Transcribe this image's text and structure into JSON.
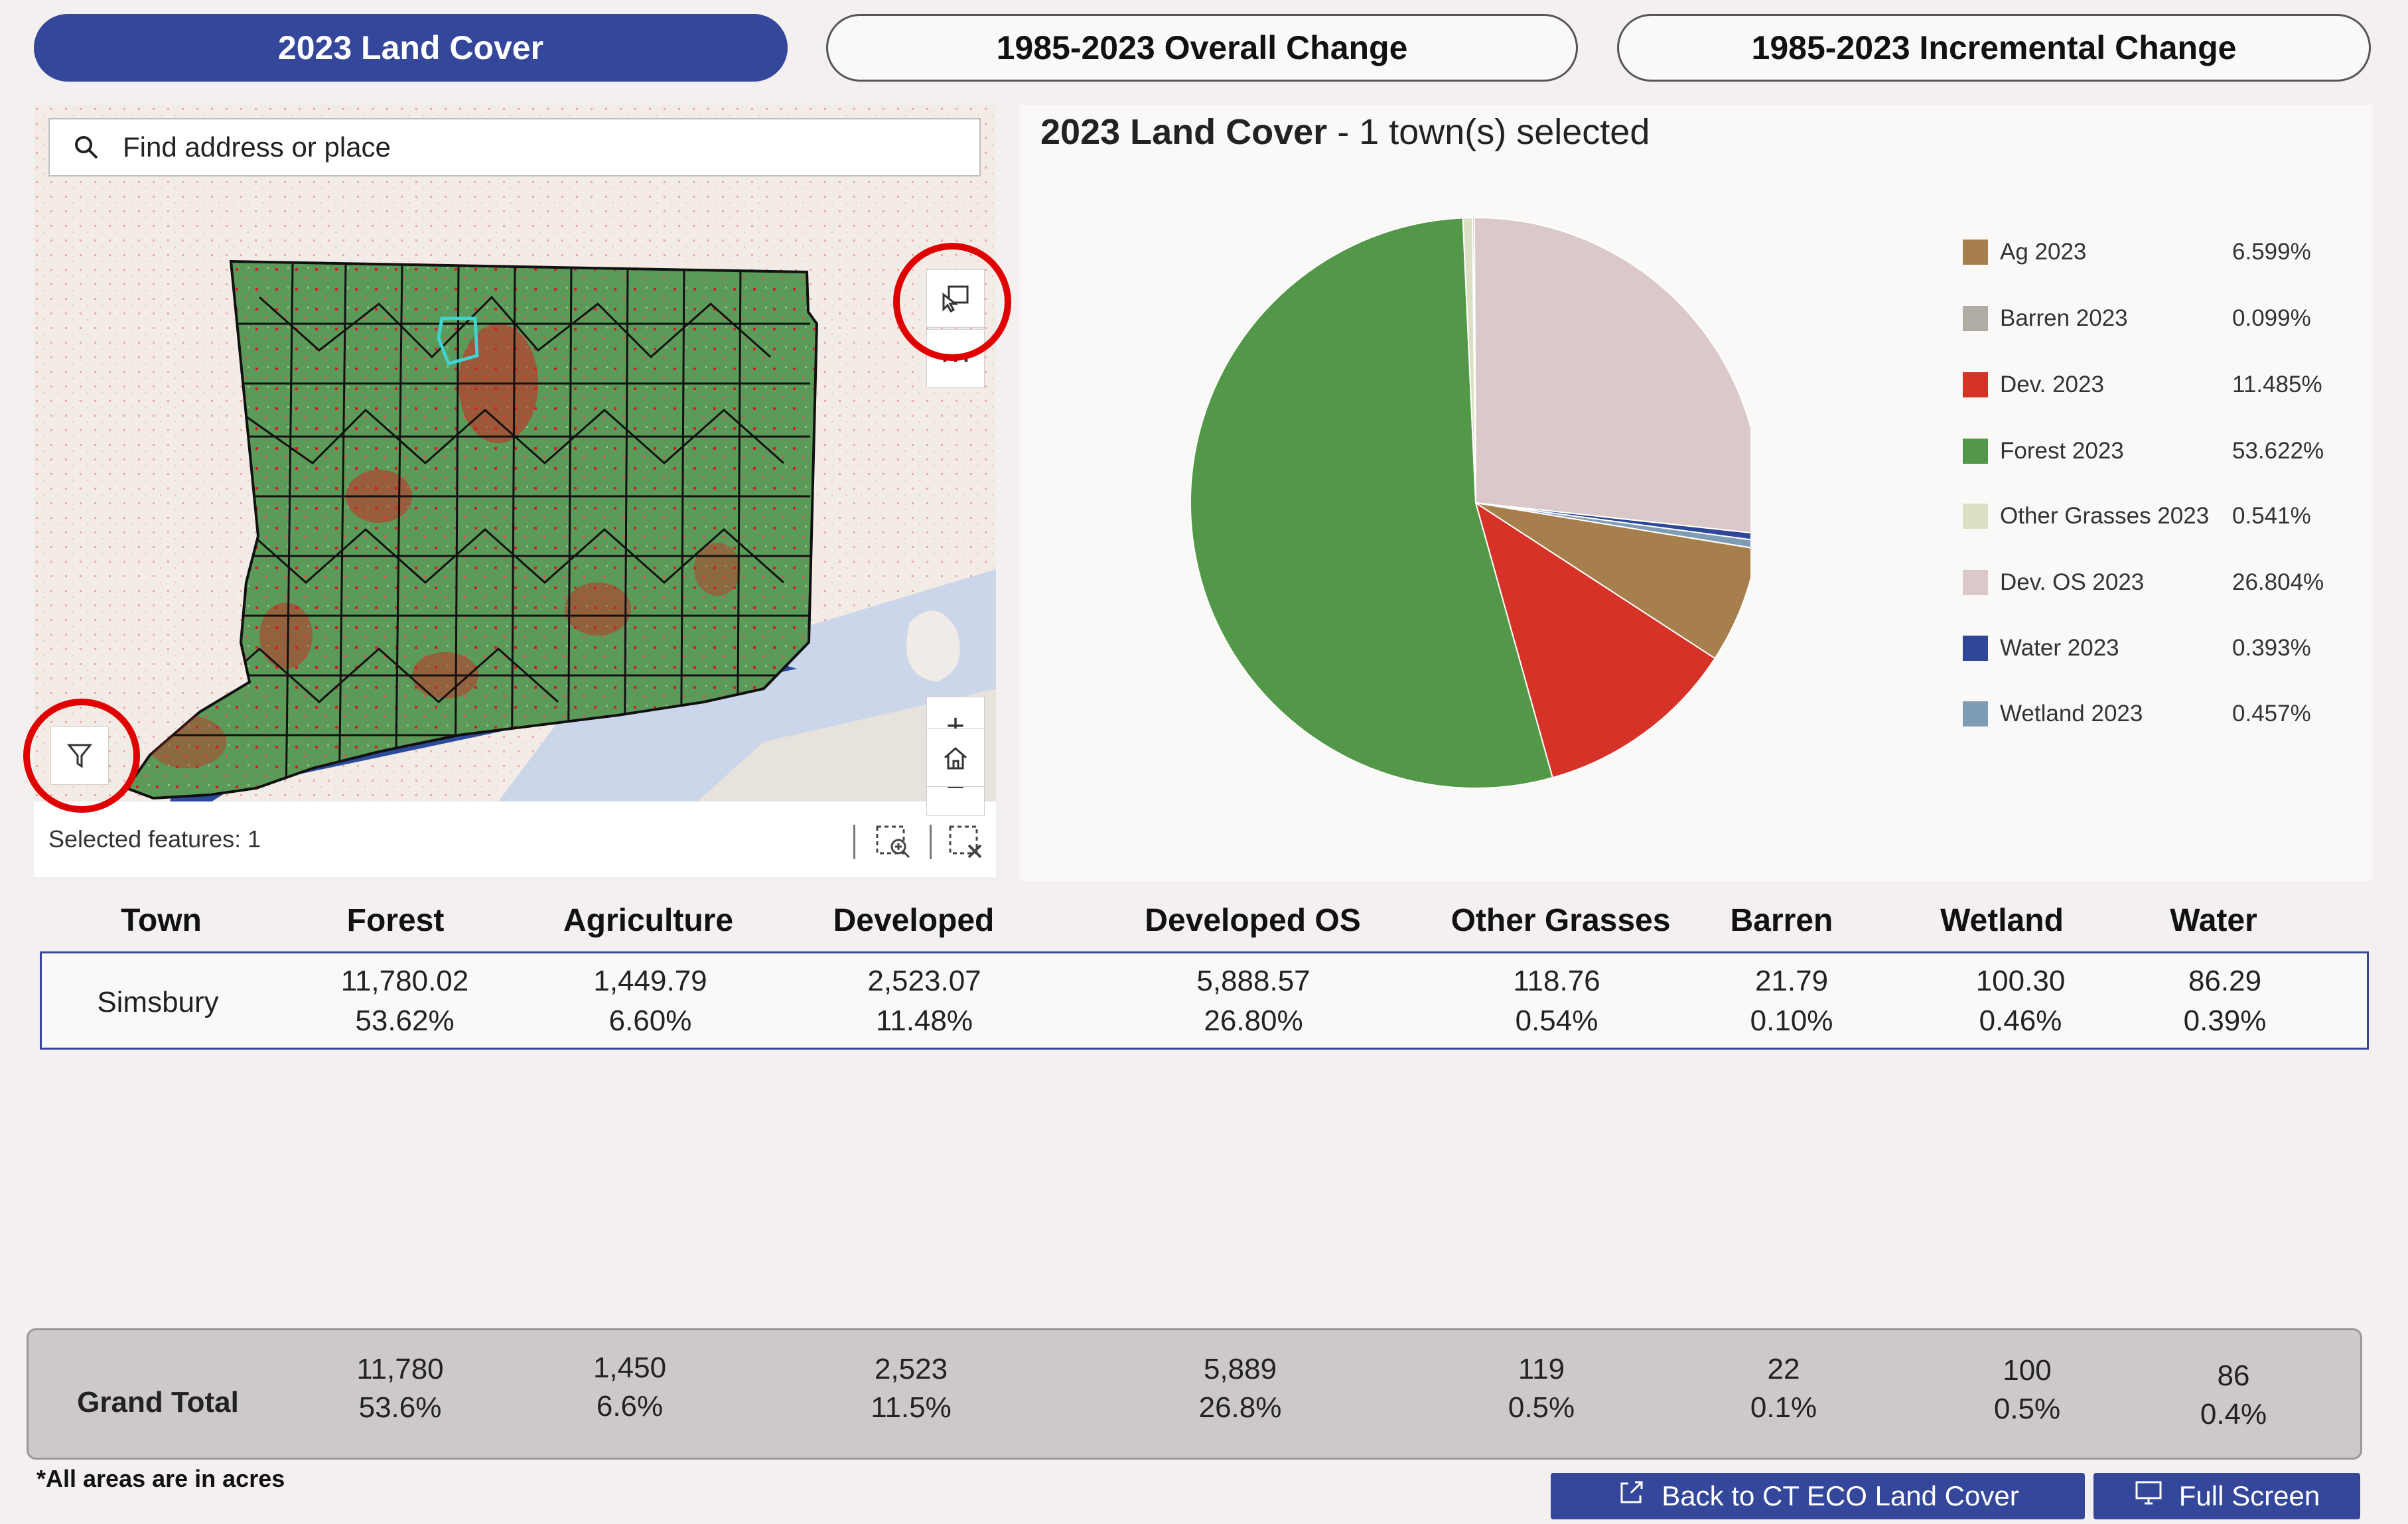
{
  "tabs": [
    {
      "label": "2023 Land Cover",
      "active": true
    },
    {
      "label": "1985-2023 Overall Change",
      "active": false
    },
    {
      "label": "1985-2023 Incremental Change",
      "active": false
    }
  ],
  "map": {
    "search_placeholder": "Find address or place",
    "selected_features": "Selected features: 1",
    "zoom_in": "+",
    "zoom_out": "−",
    "more": "···",
    "colors": {
      "land": "#5b9a58",
      "developed": "#d42020",
      "water": "#2d4b9d",
      "shallow_water": "#cbd6ea",
      "background": "#f2ebe6",
      "selected_outline": "#3fd4d4"
    }
  },
  "chart": {
    "title_bold": "2023 Land Cover",
    "title_rest": " - 1 town(s) selected"
  },
  "chart_data": {
    "type": "pie",
    "title": "2023 Land Cover - 1 town(s) selected",
    "categories": [
      "Ag 2023",
      "Barren 2023",
      "Dev. 2023",
      "Forest 2023",
      "Other Grasses 2023",
      "Dev. OS 2023",
      "Water 2023",
      "Wetland 2023"
    ],
    "values": [
      6.599,
      0.099,
      11.485,
      53.622,
      0.541,
      26.804,
      0.393,
      0.457
    ],
    "labels": [
      "6.599%",
      "0.099%",
      "11.485%",
      "53.622%",
      "0.541%",
      "26.804%",
      "0.393%",
      "0.457%"
    ],
    "colors": [
      "#a67f4c",
      "#b0aca4",
      "#d73227",
      "#539848",
      "#dcdfc4",
      "#dbc8c8",
      "#2e4897",
      "#7f9cb5"
    ],
    "legend_position": "right"
  },
  "table": {
    "headers": [
      "Town",
      "Forest",
      "Agriculture",
      "Developed",
      "Developed OS",
      "Other Grasses",
      "Barren",
      "Wetland",
      "Water"
    ],
    "row": {
      "town": "Simsbury",
      "values": [
        "11,780.02",
        "1,449.79",
        "2,523.07",
        "5,888.57",
        "118.76",
        "21.79",
        "100.30",
        "86.29"
      ],
      "percents": [
        "53.62%",
        "6.60%",
        "11.48%",
        "26.80%",
        "0.54%",
        "0.10%",
        "0.46%",
        "0.39%"
      ]
    },
    "total": {
      "label": "Grand Total",
      "values": [
        "11,780",
        "1,450",
        "2,523",
        "5,889",
        "119",
        "22",
        "100",
        "86"
      ],
      "percents": [
        "53.6%",
        "6.6%",
        "11.5%",
        "26.8%",
        "0.5%",
        "0.1%",
        "0.5%",
        "0.4%"
      ]
    },
    "footnote": "*All areas are in acres"
  },
  "buttons": {
    "back": "Back to CT ECO Land Cover",
    "fullscreen": "Full Screen"
  }
}
